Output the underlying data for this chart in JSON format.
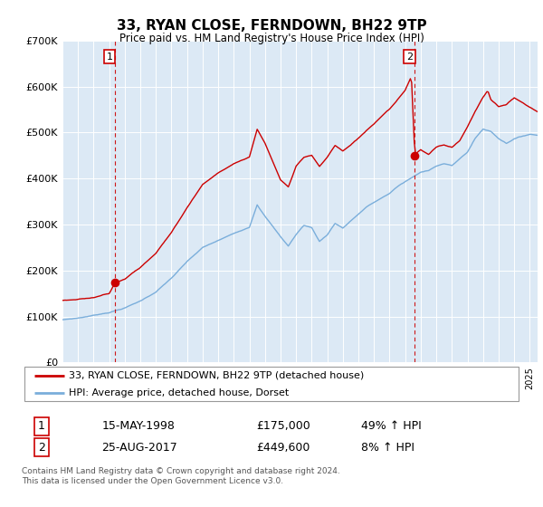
{
  "title": "33, RYAN CLOSE, FERNDOWN, BH22 9TP",
  "subtitle": "Price paid vs. HM Land Registry's House Price Index (HPI)",
  "background_color": "#dce9f5",
  "ylim": [
    0,
    700000
  ],
  "yticks": [
    0,
    100000,
    200000,
    300000,
    400000,
    500000,
    600000,
    700000
  ],
  "ytick_labels": [
    "£0",
    "£100K",
    "£200K",
    "£300K",
    "£400K",
    "£500K",
    "£600K",
    "£700K"
  ],
  "legend_line1": "33, RYAN CLOSE, FERNDOWN, BH22 9TP (detached house)",
  "legend_line2": "HPI: Average price, detached house, Dorset",
  "sale1_date": "15-MAY-1998",
  "sale1_price": "£175,000",
  "sale1_hpi": "49% ↑ HPI",
  "sale2_date": "25-AUG-2017",
  "sale2_price": "£449,600",
  "sale2_hpi": "8% ↑ HPI",
  "footer": "Contains HM Land Registry data © Crown copyright and database right 2024.\nThis data is licensed under the Open Government Licence v3.0.",
  "red_color": "#cc0000",
  "blue_color": "#7aaedb",
  "sale1_x": 1998.37,
  "sale1_y": 175000,
  "sale2_x": 2017.62,
  "sale2_y": 449600,
  "xmin": 1995.0,
  "xmax": 2025.5
}
